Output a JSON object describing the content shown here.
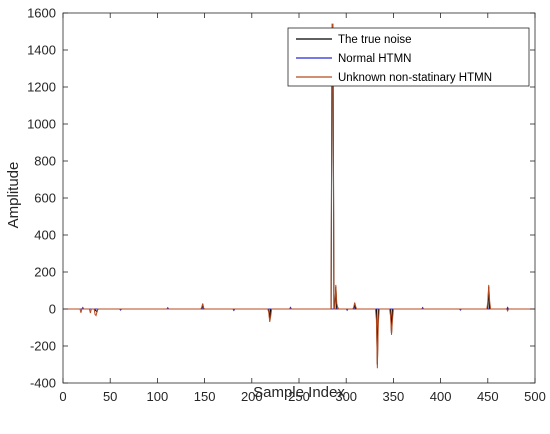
{
  "chart_data": {
    "type": "line",
    "xlabel": "Sample Index",
    "ylabel": "Amplitude",
    "xlim": [
      0,
      500
    ],
    "ylim": [
      -400,
      1600
    ],
    "xticks": [
      0,
      50,
      100,
      150,
      200,
      250,
      300,
      350,
      400,
      450,
      500
    ],
    "yticks": [
      -400,
      -200,
      0,
      200,
      400,
      600,
      800,
      1000,
      1200,
      1400,
      1600
    ],
    "grid": false,
    "legend_position": "top-right",
    "series": [
      {
        "name": "The true noise",
        "color": "#000000",
        "x": [
          0,
          33,
          36,
          37,
          147,
          148,
          149,
          218,
          219,
          220,
          284,
          285,
          286,
          287,
          288,
          289,
          290,
          291,
          308,
          309,
          310,
          332,
          333,
          334,
          347,
          348,
          349,
          450,
          451,
          452,
          500
        ],
        "y": [
          0,
          0,
          -15,
          0,
          0,
          25,
          0,
          0,
          -60,
          0,
          0,
          1500,
          1500,
          0,
          0,
          120,
          0,
          0,
          0,
          25,
          0,
          0,
          -300,
          0,
          0,
          -130,
          0,
          0,
          120,
          0,
          0
        ]
      },
      {
        "name": "Normal HTMN",
        "color": "#2828d8",
        "x": [
          0,
          20,
          21,
          22,
          60,
          61,
          62,
          110,
          111,
          112,
          180,
          181,
          182,
          240,
          241,
          242,
          300,
          301,
          302,
          380,
          381,
          382,
          420,
          421,
          422,
          470,
          471,
          472,
          500
        ],
        "y": [
          0,
          0,
          8,
          0,
          0,
          -6,
          0,
          0,
          7,
          0,
          0,
          -8,
          0,
          0,
          9,
          0,
          0,
          -7,
          0,
          0,
          8,
          0,
          0,
          -6,
          0,
          0,
          9,
          0,
          0
        ]
      },
      {
        "name": "Unknown non-statinary HTMN",
        "color": "#b54a1e",
        "x": [
          0,
          18,
          19,
          20,
          28,
          29,
          30,
          33,
          34,
          35,
          36,
          37,
          146,
          147,
          148,
          149,
          150,
          217,
          218,
          219,
          220,
          221,
          283,
          284,
          285,
          286,
          287,
          288,
          289,
          290,
          291,
          292,
          307,
          308,
          309,
          310,
          311,
          331,
          332,
          333,
          334,
          335,
          346,
          347,
          348,
          349,
          350,
          449,
          450,
          451,
          452,
          453,
          470,
          471,
          472,
          500
        ],
        "y": [
          0,
          0,
          -20,
          0,
          0,
          -22,
          0,
          0,
          -30,
          -35,
          -15,
          0,
          0,
          10,
          30,
          5,
          0,
          0,
          -20,
          -70,
          -40,
          0,
          0,
          0,
          1540,
          1540,
          0,
          0,
          130,
          30,
          10,
          0,
          0,
          10,
          35,
          15,
          0,
          0,
          -60,
          -320,
          -80,
          0,
          0,
          -40,
          -140,
          -60,
          0,
          0,
          40,
          130,
          40,
          0,
          0,
          -10,
          0,
          0
        ]
      }
    ]
  }
}
